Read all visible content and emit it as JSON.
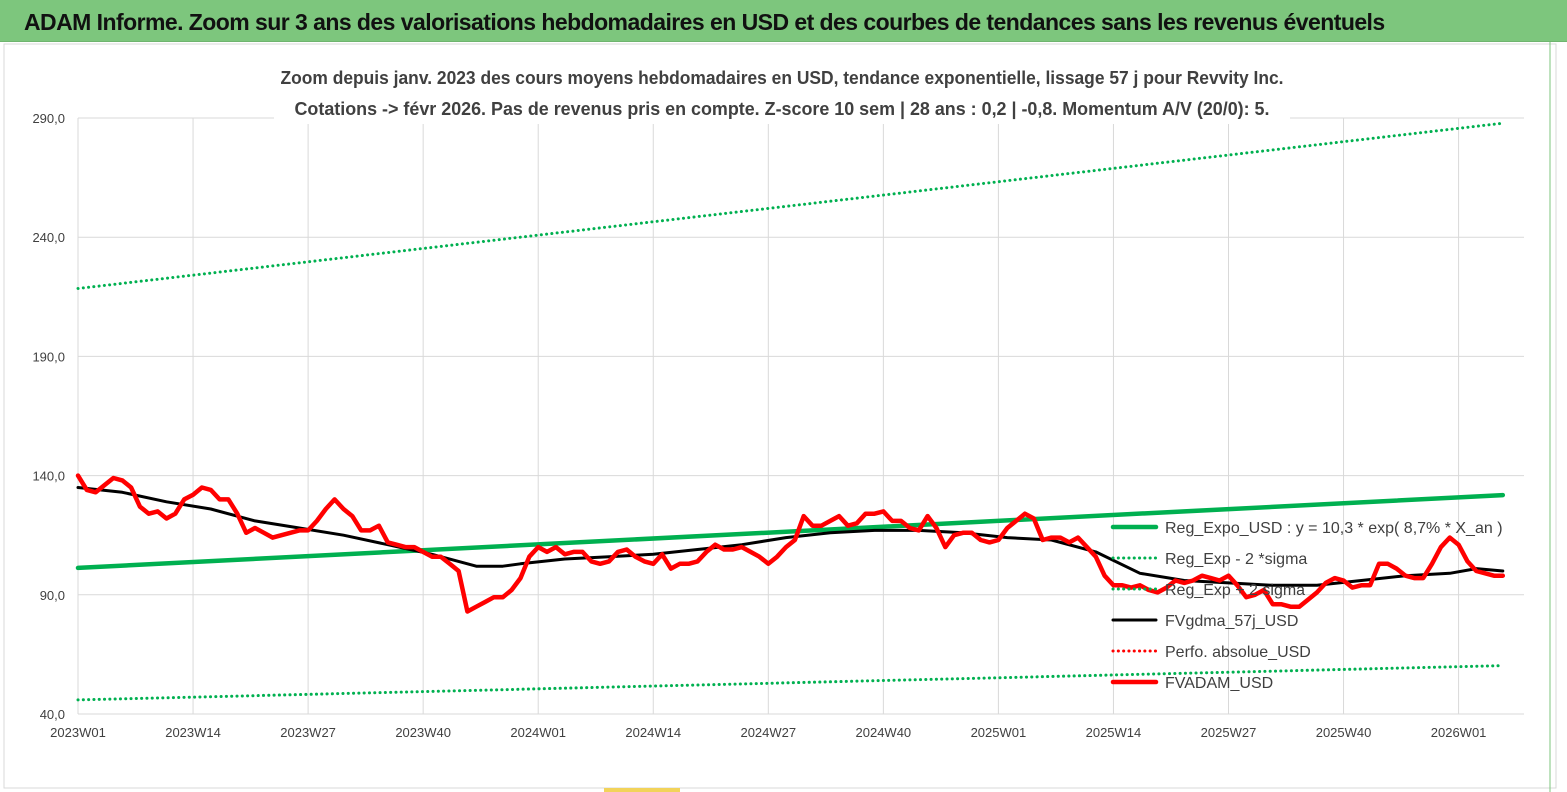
{
  "banner": {
    "title": "ADAM Informe. Zoom sur 3 ans des valorisations hebdomadaires en USD et des courbes de tendances sans les revenus éventuels"
  },
  "colors": {
    "banner_bg": "#7dc67d",
    "trend": "#00b050",
    "actual": "#ff0000",
    "smooth": "#000000",
    "perfo": "#ff0000"
  },
  "chart_data": {
    "type": "line",
    "title_lines": [
      "Zoom depuis janv. 2023 des cours moyens hebdomadaires en USD, tendance exponentielle, lissage 57 j pour Revvity Inc.",
      "Cotations -> févr 2026. Pas de revenus pris en compte. Z-score 10 sem | 28 ans : 0,2 | -0,8. Momentum A/V (20/0): 5."
    ],
    "ylim": [
      40,
      290
    ],
    "yticks": [
      "40,0",
      "90,0",
      "140,0",
      "190,0",
      "240,0",
      "290,0"
    ],
    "x_tick_labels": [
      "2023W01",
      "2023W14",
      "2023W27",
      "2023W40",
      "2024W01",
      "2024W14",
      "2024W27",
      "2024W40",
      "2025W01",
      "2025W14",
      "2025W27",
      "2025W40",
      "2026W01"
    ],
    "weeks_per_tick": 13,
    "grid": true,
    "legend_position": "right",
    "series": [
      {
        "name": "Reg_Expo_USD : y = 10,3 * exp( 8,7% *  X_an )",
        "style": "solid-thick",
        "color": "#00b050",
        "points": [
          [
            0,
            101.3
          ],
          [
            161,
            131.8
          ]
        ]
      },
      {
        "name": "Reg_Exp - 2 *sigma",
        "style": "dotted",
        "color": "#00b050",
        "points": [
          [
            0,
            45.9
          ],
          [
            161,
            60.3
          ]
        ]
      },
      {
        "name": "Reg_Exp + 2 sigma",
        "style": "dotted",
        "color": "#00b050",
        "points": [
          [
            0,
            218.5
          ],
          [
            161,
            287.8
          ]
        ]
      },
      {
        "name": "FVgdma_57j_USD",
        "style": "solid",
        "color": "#000000",
        "points": [
          [
            0,
            135
          ],
          [
            5,
            133
          ],
          [
            10,
            129
          ],
          [
            15,
            126
          ],
          [
            20,
            121
          ],
          [
            25,
            118
          ],
          [
            30,
            115
          ],
          [
            35,
            111
          ],
          [
            40,
            107
          ],
          [
            43,
            104
          ],
          [
            45,
            102
          ],
          [
            48,
            102
          ],
          [
            50,
            103
          ],
          [
            55,
            105
          ],
          [
            60,
            106
          ],
          [
            65,
            107
          ],
          [
            70,
            109
          ],
          [
            75,
            111
          ],
          [
            80,
            114
          ],
          [
            85,
            116
          ],
          [
            90,
            117
          ],
          [
            95,
            117
          ],
          [
            100,
            116
          ],
          [
            105,
            114
          ],
          [
            110,
            113
          ],
          [
            115,
            108
          ],
          [
            120,
            99
          ],
          [
            125,
            96
          ],
          [
            130,
            95
          ],
          [
            135,
            94
          ],
          [
            140,
            94
          ],
          [
            145,
            96
          ],
          [
            150,
            98
          ],
          [
            155,
            99
          ],
          [
            158,
            101
          ],
          [
            161,
            100
          ]
        ]
      },
      {
        "name": "Perfo. absolue_USD",
        "style": "dotted",
        "color": "#ff0000",
        "points": []
      },
      {
        "name": "FVADAM_USD",
        "style": "solid-thick",
        "color": "#ff0000",
        "points": [
          [
            0,
            140
          ],
          [
            1,
            134
          ],
          [
            2,
            133
          ],
          [
            3,
            136
          ],
          [
            4,
            139
          ],
          [
            5,
            138
          ],
          [
            6,
            135
          ],
          [
            7,
            127
          ],
          [
            8,
            124
          ],
          [
            9,
            125
          ],
          [
            10,
            122
          ],
          [
            11,
            124
          ],
          [
            12,
            130
          ],
          [
            13,
            132
          ],
          [
            14,
            135
          ],
          [
            15,
            134
          ],
          [
            16,
            130
          ],
          [
            17,
            130
          ],
          [
            18,
            124
          ],
          [
            19,
            116
          ],
          [
            20,
            118
          ],
          [
            21,
            116
          ],
          [
            22,
            114
          ],
          [
            23,
            115
          ],
          [
            24,
            116
          ],
          [
            25,
            117
          ],
          [
            26,
            117
          ],
          [
            27,
            121
          ],
          [
            28,
            126
          ],
          [
            29,
            130
          ],
          [
            30,
            126
          ],
          [
            31,
            123
          ],
          [
            32,
            117
          ],
          [
            33,
            117
          ],
          [
            34,
            119
          ],
          [
            35,
            112
          ],
          [
            36,
            111
          ],
          [
            37,
            110
          ],
          [
            38,
            110
          ],
          [
            39,
            108
          ],
          [
            40,
            106
          ],
          [
            41,
            106
          ],
          [
            42,
            103
          ],
          [
            43,
            100
          ],
          [
            44,
            83
          ],
          [
            45,
            85
          ],
          [
            46,
            87
          ],
          [
            47,
            89
          ],
          [
            48,
            89
          ],
          [
            49,
            92
          ],
          [
            50,
            97
          ],
          [
            51,
            106
          ],
          [
            52,
            110
          ],
          [
            53,
            108
          ],
          [
            54,
            110
          ],
          [
            55,
            107
          ],
          [
            56,
            108
          ],
          [
            57,
            108
          ],
          [
            58,
            104
          ],
          [
            59,
            103
          ],
          [
            60,
            104
          ],
          [
            61,
            108
          ],
          [
            62,
            109
          ],
          [
            63,
            106
          ],
          [
            64,
            104
          ],
          [
            65,
            103
          ],
          [
            66,
            107
          ],
          [
            67,
            101
          ],
          [
            68,
            103
          ],
          [
            69,
            103
          ],
          [
            70,
            104
          ],
          [
            71,
            108
          ],
          [
            72,
            111
          ],
          [
            73,
            109
          ],
          [
            74,
            109
          ],
          [
            75,
            110
          ],
          [
            76,
            108
          ],
          [
            77,
            106
          ],
          [
            78,
            103
          ],
          [
            79,
            106
          ],
          [
            80,
            110
          ],
          [
            81,
            113
          ],
          [
            82,
            123
          ],
          [
            83,
            119
          ],
          [
            84,
            119
          ],
          [
            85,
            121
          ],
          [
            86,
            123
          ],
          [
            87,
            119
          ],
          [
            88,
            120
          ],
          [
            89,
            124
          ],
          [
            90,
            124
          ],
          [
            91,
            125
          ],
          [
            92,
            121
          ],
          [
            93,
            121
          ],
          [
            94,
            118
          ],
          [
            95,
            117
          ],
          [
            96,
            123
          ],
          [
            97,
            118
          ],
          [
            98,
            110
          ],
          [
            99,
            115
          ],
          [
            100,
            116
          ],
          [
            101,
            116
          ],
          [
            102,
            113
          ],
          [
            103,
            112
          ],
          [
            104,
            113
          ],
          [
            105,
            118
          ],
          [
            106,
            121
          ],
          [
            107,
            124
          ],
          [
            108,
            122
          ],
          [
            109,
            113
          ],
          [
            110,
            114
          ],
          [
            111,
            114
          ],
          [
            112,
            112
          ],
          [
            113,
            114
          ],
          [
            114,
            110
          ],
          [
            115,
            106
          ],
          [
            116,
            98
          ],
          [
            117,
            94
          ],
          [
            118,
            94
          ],
          [
            119,
            93
          ],
          [
            120,
            94
          ],
          [
            121,
            92
          ],
          [
            122,
            91
          ],
          [
            123,
            93
          ],
          [
            124,
            96
          ],
          [
            125,
            95
          ],
          [
            126,
            96
          ],
          [
            127,
            98
          ],
          [
            128,
            97
          ],
          [
            129,
            96
          ],
          [
            130,
            98
          ],
          [
            131,
            94
          ],
          [
            132,
            89
          ],
          [
            133,
            90
          ],
          [
            134,
            92
          ],
          [
            135,
            86
          ],
          [
            136,
            86
          ],
          [
            137,
            85
          ],
          [
            138,
            85
          ],
          [
            139,
            88
          ],
          [
            140,
            91
          ],
          [
            141,
            95
          ],
          [
            142,
            97
          ],
          [
            143,
            96
          ],
          [
            144,
            93
          ],
          [
            145,
            94
          ],
          [
            146,
            94
          ],
          [
            147,
            103
          ],
          [
            148,
            103
          ],
          [
            149,
            101
          ],
          [
            150,
            98
          ],
          [
            151,
            97
          ],
          [
            152,
            97
          ],
          [
            153,
            103
          ],
          [
            154,
            110
          ],
          [
            155,
            114
          ],
          [
            156,
            111
          ],
          [
            157,
            104
          ],
          [
            158,
            100
          ],
          [
            159,
            99
          ],
          [
            160,
            98
          ],
          [
            161,
            98
          ]
        ]
      }
    ]
  }
}
